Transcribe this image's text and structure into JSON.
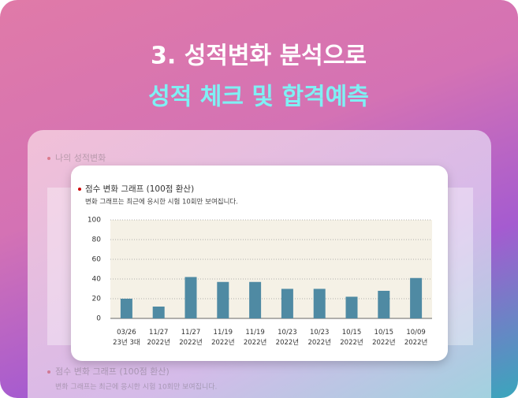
{
  "header": {
    "line1": "3. 성적변화 분석으로",
    "line2": "성적 체크 및 합격예측"
  },
  "background": {
    "section_title": "나의 성적변화",
    "bottom_title": "점수 변화 그래프 (100점 환산)",
    "bottom_note": "변화 그래프는 최근에 응시한 시험 10회만 보여집니다."
  },
  "chart_data": {
    "type": "bar",
    "title": "점수 변화 그래프 (100점 환산)",
    "subtitle": "변화 그래프는 최근에 응시한 시험 10회만 보여집니다.",
    "categories": [
      "03/26\n23년 3대",
      "11/27\n2022년",
      "11/27\n2022년",
      "11/19\n2022년",
      "11/19\n2022년",
      "10/23\n2022년",
      "10/23\n2022년",
      "10/15\n2022년",
      "10/15\n2022년",
      "10/09\n2022년"
    ],
    "values": [
      20,
      12,
      42,
      37,
      37,
      30,
      30,
      22,
      28,
      41
    ],
    "color": "#4f8aa3",
    "ylim": [
      0,
      100
    ],
    "yticks": [
      0,
      20,
      40,
      60,
      80,
      100
    ],
    "grid": true
  }
}
